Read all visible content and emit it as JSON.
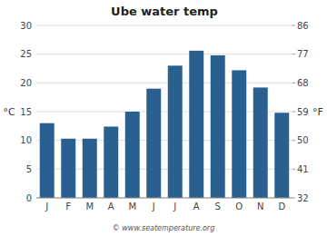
{
  "chart_data": {
    "type": "bar",
    "title": "Ube water temp",
    "categories": [
      "J",
      "F",
      "M",
      "A",
      "M",
      "J",
      "J",
      "A",
      "S",
      "O",
      "N",
      "D"
    ],
    "values": [
      13.0,
      10.3,
      10.3,
      12.4,
      15.0,
      19.0,
      23.0,
      25.6,
      24.8,
      22.2,
      19.2,
      14.8
    ],
    "color": "#2a6090",
    "ylabel": "°C",
    "y2label": "°F",
    "ylim": [
      0,
      30
    ],
    "yticks": [
      0,
      5,
      10,
      15,
      20,
      25,
      30
    ],
    "y2lim": [
      32,
      86
    ],
    "y2ticks": [
      32,
      41,
      50,
      59,
      68,
      77,
      86
    ],
    "grid": true,
    "annotations": [
      "© www.seatemperature.org"
    ]
  }
}
